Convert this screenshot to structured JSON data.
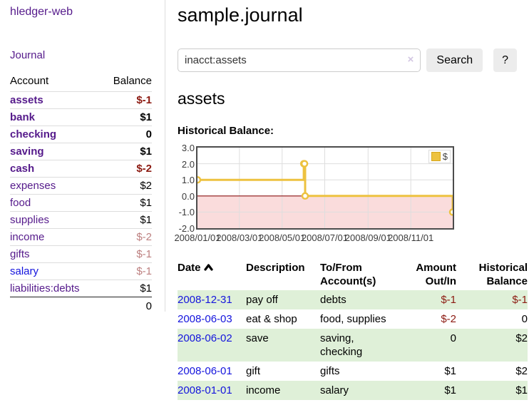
{
  "sidebar": {
    "brand": "hledger-web",
    "nav_journal": "Journal",
    "accounts_header": {
      "account": "Account",
      "balance": "Balance"
    },
    "accounts": [
      {
        "name": "assets",
        "indent": 1,
        "bold": true,
        "blue": false,
        "balance": "$-1",
        "balance_class": "neg-strong"
      },
      {
        "name": "bank",
        "indent": 2,
        "bold": true,
        "blue": false,
        "balance": "$1",
        "balance_class": ""
      },
      {
        "name": "checking",
        "indent": 3,
        "bold": true,
        "blue": false,
        "balance": "0",
        "balance_class": ""
      },
      {
        "name": "saving",
        "indent": 3,
        "bold": true,
        "blue": false,
        "balance": "$1",
        "balance_class": ""
      },
      {
        "name": "cash",
        "indent": 2,
        "bold": true,
        "blue": false,
        "balance": "$-2",
        "balance_class": "neg-strong"
      },
      {
        "name": "expenses",
        "indent": 1,
        "bold": false,
        "blue": false,
        "balance": "$2",
        "balance_class": ""
      },
      {
        "name": "food",
        "indent": 2,
        "bold": false,
        "blue": false,
        "balance": "$1",
        "balance_class": ""
      },
      {
        "name": "supplies",
        "indent": 2,
        "bold": false,
        "blue": false,
        "balance": "$1",
        "balance_class": ""
      },
      {
        "name": "income",
        "indent": 1,
        "bold": false,
        "blue": false,
        "balance": "$-2",
        "balance_class": "neg"
      },
      {
        "name": "gifts",
        "indent": 2,
        "bold": false,
        "blue": false,
        "balance": "$-1",
        "balance_class": "neg"
      },
      {
        "name": "salary",
        "indent": 2,
        "bold": false,
        "blue": true,
        "balance": "$-1",
        "balance_class": "neg"
      },
      {
        "name": "liabilities:debts",
        "indent": 1,
        "bold": false,
        "blue": false,
        "balance": "$1",
        "balance_class": ""
      }
    ],
    "total": "0"
  },
  "header": {
    "title": "sample.journal"
  },
  "search": {
    "value": "inacct:assets",
    "clear_icon": "×",
    "button": "Search",
    "help_button": "?"
  },
  "account_page": {
    "heading": "assets"
  },
  "chart_data": {
    "type": "line",
    "title": "Historical Balance:",
    "x_range": [
      "2008-01-01",
      "2008-12-31"
    ],
    "ylim": [
      -2,
      3
    ],
    "grid": true,
    "legend_position": "top-right",
    "series": [
      {
        "name": "$",
        "color": "#edc240",
        "step": true,
        "points": [
          [
            "2008-01-01",
            1
          ],
          [
            "2008-06-01",
            2
          ],
          [
            "2008-06-02",
            2
          ],
          [
            "2008-06-03",
            0
          ],
          [
            "2008-12-31",
            -1
          ]
        ]
      }
    ],
    "xticks": [
      {
        "label": "2008/01/01",
        "date": "2008-01-01"
      },
      {
        "label": "2008/03/01",
        "date": "2008-03-01"
      },
      {
        "label": "2008/05/01",
        "date": "2008-05-01"
      },
      {
        "label": "2008/07/01",
        "date": "2008-07-01"
      },
      {
        "label": "2008/09/01",
        "date": "2008-09-01"
      },
      {
        "label": "2008/11/01",
        "date": "2008-11-01"
      }
    ],
    "yticks": [
      {
        "label": "3.0",
        "value": 3
      },
      {
        "label": "2.0",
        "value": 2
      },
      {
        "label": "1.0",
        "value": 1
      },
      {
        "label": "0.0",
        "value": 0
      },
      {
        "label": "-1.0",
        "value": -1
      },
      {
        "label": "-2.0",
        "value": -2
      }
    ],
    "negative_region_color": "#fadcdc",
    "zero_line_color": "#8b1212",
    "legend": {
      "label": "$",
      "swatch_color": "#edc240"
    }
  },
  "register": {
    "headers": [
      {
        "label": "Date"
      },
      {
        "label": "Description"
      },
      {
        "label": "To/From Account(s)"
      },
      {
        "label": "Amount Out/In"
      },
      {
        "label": "Historical Balance"
      }
    ],
    "rows": [
      {
        "date": "2008-12-31",
        "description": "pay off",
        "accounts": "debts",
        "amount": "$-1",
        "amount_neg": true,
        "balance": "$-1",
        "balance_neg": true,
        "shade": true
      },
      {
        "date": "2008-06-03",
        "description": "eat & shop",
        "accounts": "food, supplies",
        "amount": "$-2",
        "amount_neg": true,
        "balance": "0",
        "balance_neg": false,
        "shade": false
      },
      {
        "date": "2008-06-02",
        "description": "save",
        "accounts": "saving, checking",
        "amount": "0",
        "amount_neg": false,
        "balance": "$2",
        "balance_neg": false,
        "shade": true
      },
      {
        "date": "2008-06-01",
        "description": "gift",
        "accounts": "gifts",
        "amount": "$1",
        "amount_neg": false,
        "balance": "$2",
        "balance_neg": false,
        "shade": false
      },
      {
        "date": "2008-01-01",
        "description": "income",
        "accounts": "salary",
        "amount": "$1",
        "amount_neg": false,
        "balance": "$1",
        "balance_neg": false,
        "shade": true
      }
    ]
  },
  "colors": {
    "link_purple": "#551a8b",
    "link_blue": "#1414dd",
    "negative_strong": "#8c1a11",
    "negative_muted": "#bd8080",
    "row_stripe_green": "#dff0d8",
    "chart_line_gold": "#edc240",
    "chart_negative_pink": "#fadcdc",
    "chart_zero_line": "#8b1212"
  }
}
